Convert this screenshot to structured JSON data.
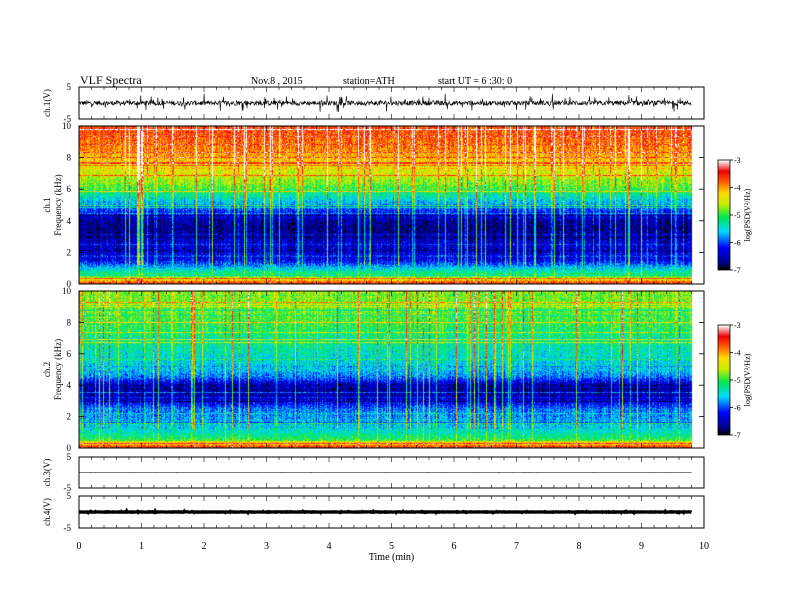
{
  "header": {
    "title": "VLF Spectra",
    "date": "Nov.8 , 2015",
    "station": "station=ATH",
    "start": "start UT =  6 :30: 0"
  },
  "chart_data": [
    {
      "type": "line",
      "panel": "ch1-waveform",
      "ylabel": "ch.1(V)",
      "ylim": [
        -5,
        5
      ],
      "yticks": [
        "5",
        "-5"
      ],
      "xlim": [
        0,
        10
      ],
      "description_values": {
        "mean_level": 0,
        "noise_amplitude": 2.5,
        "end_time_min": 9.8
      },
      "color": "#000000"
    },
    {
      "type": "heatmap",
      "panel": "ch1-spectrogram",
      "ylabel": "ch.1 Frequency (kHz)",
      "ylim": [
        0,
        10
      ],
      "yticks": [
        "0",
        "2",
        "4",
        "6",
        "8",
        "10"
      ],
      "xlim": [
        0,
        10
      ],
      "end_time_min": 9.8,
      "profile": {
        "freq_khz": [
          0,
          0.5,
          1,
          1.5,
          2,
          2.5,
          3,
          3.5,
          4,
          4.5,
          5,
          5.5,
          6,
          6.5,
          7,
          7.5,
          8,
          8.5,
          9,
          9.5,
          10
        ],
        "log_psd": [
          -3.4,
          -5.0,
          -5.6,
          -6.3,
          -6.5,
          -6.4,
          -6.6,
          -6.7,
          -6.6,
          -6.2,
          -5.8,
          -5.4,
          -5.0,
          -4.7,
          -4.5,
          -4.3,
          -4.1,
          -3.9,
          -3.8,
          -3.7,
          -3.6
        ]
      },
      "colorbar": {
        "label": "log(PSD(V²/Hz)",
        "range": [
          -7,
          -3
        ],
        "ticks": [
          "-3",
          "-4",
          "-5",
          "-6",
          "-7"
        ]
      }
    },
    {
      "type": "heatmap",
      "panel": "ch2-spectrogram",
      "ylabel": "ch.2 Frequency (kHz)",
      "ylim": [
        0,
        10
      ],
      "yticks": [
        "0",
        "2",
        "4",
        "6",
        "8",
        "10"
      ],
      "xlim": [
        0,
        10
      ],
      "end_time_min": 9.8,
      "profile": {
        "freq_khz": [
          0,
          0.5,
          1,
          1.5,
          2,
          2.5,
          3,
          3.5,
          4,
          4.5,
          5,
          5.5,
          6,
          6.5,
          7,
          7.5,
          8,
          8.5,
          9,
          9.5,
          10
        ],
        "log_psd": [
          -3.4,
          -5.0,
          -5.4,
          -5.6,
          -5.8,
          -5.9,
          -6.4,
          -6.6,
          -6.6,
          -5.9,
          -5.6,
          -5.5,
          -5.4,
          -5.3,
          -5.2,
          -5.1,
          -5.0,
          -4.9,
          -4.8,
          -4.8,
          -4.7
        ]
      },
      "colorbar": {
        "label": "log(PSD(V²/Hz)",
        "range": [
          -7,
          -3
        ],
        "ticks": [
          "-3",
          "-4",
          "-5",
          "-6",
          "-7"
        ]
      }
    },
    {
      "type": "line",
      "panel": "ch3-waveform",
      "ylabel": "ch.3(V)",
      "ylim": [
        -5,
        5
      ],
      "yticks": [
        "5",
        "-5"
      ],
      "xlim": [
        0,
        10
      ],
      "description_values": {
        "mean_level": 0,
        "noise_amplitude": 0.05,
        "end_time_min": 9.8
      },
      "color": "#000000"
    },
    {
      "type": "line",
      "panel": "ch4-waveform",
      "ylabel": "ch.4(V)",
      "ylim": [
        -5,
        5
      ],
      "yticks": [
        "5",
        "-5"
      ],
      "xlim": [
        0,
        10
      ],
      "description_values": {
        "mean_level": 0,
        "noise_amplitude": 0.2,
        "end_time_min": 9.8
      },
      "color": "#000000",
      "xlabel": "Time  (min)",
      "xticks": [
        "0",
        "1",
        "2",
        "3",
        "4",
        "5",
        "6",
        "7",
        "8",
        "9",
        "10"
      ]
    }
  ]
}
